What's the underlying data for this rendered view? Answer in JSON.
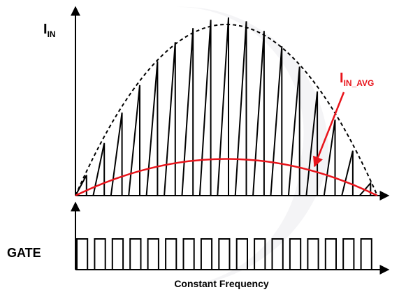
{
  "labels": {
    "y_axis": {
      "main": "I",
      "sub": "IN"
    },
    "average": {
      "main": "I",
      "sub": "IN_AVG"
    },
    "gate": "GATE",
    "caption": "Constant Frequency"
  },
  "colors": {
    "trace": "#000000",
    "average": "#e8141b",
    "watermark": "#f4f4f6"
  },
  "waveform": {
    "pulse_count": 17
  }
}
